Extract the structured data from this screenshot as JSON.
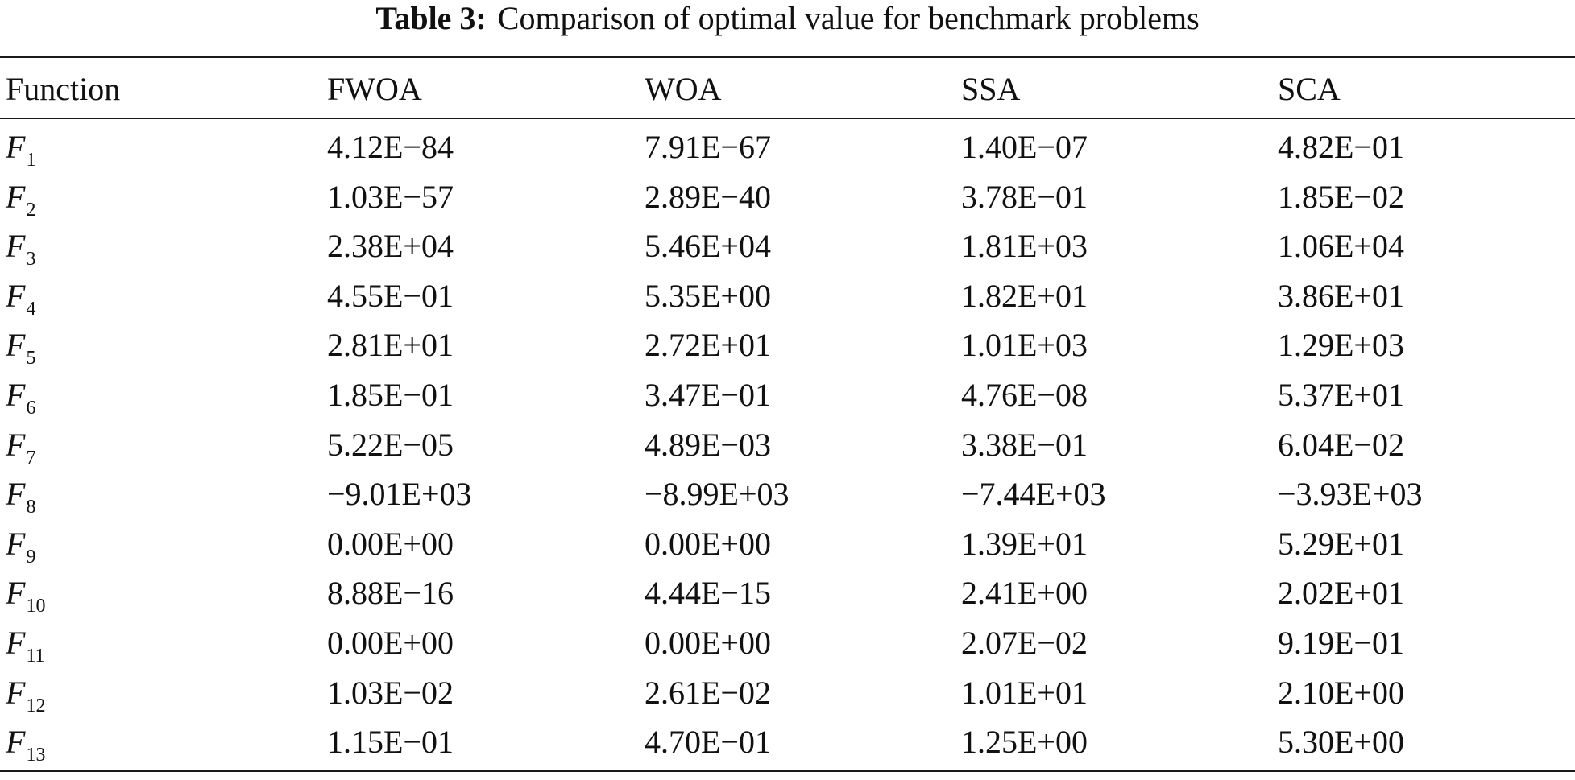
{
  "caption": {
    "label": "Table 3:",
    "text": "Comparison of optimal value for benchmark problems"
  },
  "table": {
    "headers": [
      "Function",
      "FWOA",
      "WOA",
      "SSA",
      "SCA"
    ],
    "rows": [
      {
        "fn": "F",
        "sub": "1",
        "values": [
          "4.12E−84",
          "7.91E−67",
          "1.40E−07",
          "4.82E−01"
        ]
      },
      {
        "fn": "F",
        "sub": "2",
        "values": [
          "1.03E−57",
          "2.89E−40",
          "3.78E−01",
          "1.85E−02"
        ]
      },
      {
        "fn": "F",
        "sub": "3",
        "values": [
          "2.38E+04",
          "5.46E+04",
          "1.81E+03",
          "1.06E+04"
        ]
      },
      {
        "fn": "F",
        "sub": "4",
        "values": [
          "4.55E−01",
          "5.35E+00",
          "1.82E+01",
          "3.86E+01"
        ]
      },
      {
        "fn": "F",
        "sub": "5",
        "values": [
          "2.81E+01",
          "2.72E+01",
          "1.01E+03",
          "1.29E+03"
        ]
      },
      {
        "fn": "F",
        "sub": "6",
        "values": [
          "1.85E−01",
          "3.47E−01",
          "4.76E−08",
          "5.37E+01"
        ]
      },
      {
        "fn": "F",
        "sub": "7",
        "values": [
          "5.22E−05",
          "4.89E−03",
          "3.38E−01",
          "6.04E−02"
        ]
      },
      {
        "fn": "F",
        "sub": "8",
        "values": [
          "−9.01E+03",
          "−8.99E+03",
          "−7.44E+03",
          "−3.93E+03"
        ]
      },
      {
        "fn": "F",
        "sub": "9",
        "values": [
          "0.00E+00",
          "0.00E+00",
          "1.39E+01",
          "5.29E+01"
        ]
      },
      {
        "fn": "F",
        "sub": "10",
        "values": [
          "8.88E−16",
          "4.44E−15",
          "2.41E+00",
          "2.02E+01"
        ]
      },
      {
        "fn": "F",
        "sub": "11",
        "values": [
          "0.00E+00",
          "0.00E+00",
          "2.07E−02",
          "9.19E−01"
        ]
      },
      {
        "fn": "F",
        "sub": "12",
        "values": [
          "1.03E−02",
          "2.61E−02",
          "1.01E+01",
          "2.10E+00"
        ]
      },
      {
        "fn": "F",
        "sub": "13",
        "values": [
          "1.15E−01",
          "4.70E−01",
          "1.25E+00",
          "5.30E+00"
        ]
      }
    ]
  }
}
